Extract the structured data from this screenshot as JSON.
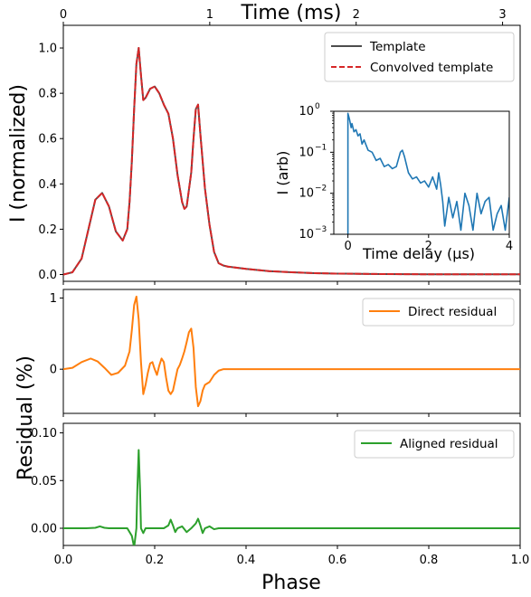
{
  "chart_data": [
    {
      "panel": "main",
      "type": "line",
      "xlabel": "",
      "ylabel": "I (normalized)",
      "xlim": [
        0,
        1
      ],
      "ylim": [
        -0.03,
        1.1
      ],
      "xticks": [
        0.0,
        0.2,
        0.4,
        0.6,
        0.8,
        1.0
      ],
      "yticks": [
        0.0,
        0.2,
        0.4,
        0.6,
        0.8,
        1.0
      ],
      "ytick_labels": [
        "0.0",
        "0.2",
        "0.4",
        "0.6",
        "0.8",
        "1.0"
      ],
      "top_axis": {
        "label": "Time (ms)",
        "lim": [
          0,
          3.12
        ],
        "ticks": [
          0,
          1,
          2,
          3
        ],
        "tick_labels": [
          "0",
          "1",
          "2",
          "3"
        ]
      },
      "legend": {
        "placement": "upper-right",
        "entries": [
          "Template",
          "Convolved template"
        ]
      },
      "series": [
        {
          "name": "Template",
          "color": "#4d4d4d",
          "style": "solid",
          "x": [
            0.0,
            0.02,
            0.04,
            0.055,
            0.07,
            0.085,
            0.1,
            0.115,
            0.13,
            0.14,
            0.145,
            0.15,
            0.155,
            0.16,
            0.165,
            0.17,
            0.175,
            0.18,
            0.19,
            0.2,
            0.21,
            0.22,
            0.23,
            0.24,
            0.25,
            0.26,
            0.265,
            0.27,
            0.28,
            0.285,
            0.29,
            0.295,
            0.3,
            0.31,
            0.32,
            0.33,
            0.34,
            0.35,
            0.36,
            0.38,
            0.4,
            0.45,
            0.5,
            0.55,
            0.6,
            0.65,
            0.7,
            0.8,
            0.9,
            1.0
          ],
          "y": [
            0.0,
            0.01,
            0.07,
            0.2,
            0.33,
            0.36,
            0.3,
            0.19,
            0.15,
            0.2,
            0.32,
            0.5,
            0.73,
            0.93,
            1.0,
            0.88,
            0.77,
            0.78,
            0.82,
            0.83,
            0.8,
            0.75,
            0.71,
            0.6,
            0.44,
            0.32,
            0.29,
            0.3,
            0.45,
            0.6,
            0.73,
            0.75,
            0.62,
            0.38,
            0.22,
            0.1,
            0.05,
            0.04,
            0.035,
            0.03,
            0.025,
            0.015,
            0.01,
            0.006,
            0.004,
            0.003,
            0.002,
            0.001,
            0.001,
            0.001
          ]
        },
        {
          "name": "Convolved template",
          "color": "#d62728",
          "style": "dashed",
          "same_as": "Template"
        }
      ],
      "inset": {
        "type": "line",
        "xlabel": "Time delay (μs)",
        "ylabel": "I (arb)",
        "xlim": [
          -0.35,
          4.0
        ],
        "ylim_log10": [
          -3,
          0
        ],
        "scale_y": "log",
        "xticks": [
          0,
          2,
          4
        ],
        "xtick_labels": [
          "0",
          "2",
          "4"
        ],
        "yticks_log10": [
          -3,
          -2,
          -1,
          0
        ],
        "color": "#1f77b4",
        "x": [
          0.0,
          0.0,
          0.04,
          0.08,
          0.1,
          0.15,
          0.2,
          0.25,
          0.3,
          0.35,
          0.4,
          0.5,
          0.6,
          0.7,
          0.8,
          0.9,
          1.0,
          1.1,
          1.2,
          1.3,
          1.35,
          1.4,
          1.5,
          1.6,
          1.7,
          1.8,
          1.9,
          2.0,
          2.1,
          2.2,
          2.25,
          2.3,
          2.35,
          2.4,
          2.5,
          2.6,
          2.7,
          2.8,
          2.9,
          3.0,
          3.1,
          3.2,
          3.3,
          3.4,
          3.5,
          3.6,
          3.7,
          3.8,
          3.9,
          4.0
        ],
        "y_log10": [
          -3.0,
          -0.05,
          -0.2,
          -0.4,
          -0.3,
          -0.5,
          -0.45,
          -0.6,
          -0.55,
          -0.8,
          -0.7,
          -0.95,
          -1.0,
          -1.2,
          -1.15,
          -1.35,
          -1.3,
          -1.4,
          -1.35,
          -1.0,
          -0.95,
          -1.1,
          -1.5,
          -1.65,
          -1.6,
          -1.75,
          -1.7,
          -1.85,
          -1.6,
          -1.9,
          -1.5,
          -1.8,
          -2.2,
          -2.8,
          -2.1,
          -2.6,
          -2.2,
          -2.9,
          -2.0,
          -2.3,
          -2.9,
          -2.0,
          -2.5,
          -2.2,
          -2.1,
          -2.9,
          -2.5,
          -2.3,
          -2.9,
          -2.1
        ]
      }
    },
    {
      "panel": "direct",
      "type": "line",
      "xlabel": "",
      "ylabel": "Residual (%)",
      "xlim": [
        0,
        1
      ],
      "ylim": [
        -0.62,
        1.12
      ],
      "xticks": [
        0.0,
        0.2,
        0.4,
        0.6,
        0.8,
        1.0
      ],
      "yticks": [
        0,
        1
      ],
      "ytick_labels": [
        "0",
        "1"
      ],
      "legend": {
        "placement": "upper-right",
        "entries": [
          "Direct residual"
        ]
      },
      "series": [
        {
          "name": "Direct residual",
          "color": "#ff7f0e",
          "style": "solid",
          "x": [
            0.0,
            0.02,
            0.04,
            0.06,
            0.075,
            0.09,
            0.105,
            0.12,
            0.135,
            0.145,
            0.15,
            0.155,
            0.16,
            0.165,
            0.17,
            0.175,
            0.18,
            0.185,
            0.19,
            0.195,
            0.2,
            0.205,
            0.21,
            0.215,
            0.22,
            0.225,
            0.23,
            0.235,
            0.24,
            0.245,
            0.25,
            0.255,
            0.26,
            0.265,
            0.27,
            0.275,
            0.28,
            0.285,
            0.29,
            0.295,
            0.3,
            0.305,
            0.31,
            0.32,
            0.33,
            0.34,
            0.35,
            0.37,
            0.4,
            0.5,
            0.7,
            1.0
          ],
          "y": [
            0.0,
            0.02,
            0.1,
            0.15,
            0.11,
            0.02,
            -0.08,
            -0.05,
            0.05,
            0.25,
            0.55,
            0.9,
            1.02,
            0.7,
            0.1,
            -0.35,
            -0.22,
            -0.05,
            0.08,
            0.1,
            0.0,
            -0.08,
            0.05,
            0.15,
            0.1,
            -0.12,
            -0.3,
            -0.35,
            -0.3,
            -0.15,
            0.0,
            0.06,
            0.15,
            0.25,
            0.38,
            0.52,
            0.57,
            0.3,
            -0.25,
            -0.52,
            -0.45,
            -0.3,
            -0.22,
            -0.18,
            -0.08,
            -0.02,
            0.0,
            0.0,
            0.0,
            0.0,
            0.0,
            0.0
          ]
        }
      ]
    },
    {
      "panel": "aligned",
      "type": "line",
      "xlabel": "Phase",
      "ylabel": "",
      "xlim": [
        0,
        1
      ],
      "ylim": [
        -0.018,
        0.11
      ],
      "xticks": [
        0.0,
        0.2,
        0.4,
        0.6,
        0.8,
        1.0
      ],
      "xtick_labels": [
        "0.0",
        "0.2",
        "0.4",
        "0.6",
        "0.8",
        "1.0"
      ],
      "yticks": [
        0.0,
        0.05,
        0.1
      ],
      "ytick_labels": [
        "0.00",
        "0.05",
        "0.10"
      ],
      "legend": {
        "placement": "upper-right",
        "entries": [
          "Aligned residual"
        ]
      },
      "series": [
        {
          "name": "Aligned residual",
          "color": "#2ca02c",
          "style": "solid",
          "x": [
            0.0,
            0.05,
            0.07,
            0.08,
            0.09,
            0.1,
            0.12,
            0.14,
            0.15,
            0.155,
            0.16,
            0.162,
            0.165,
            0.168,
            0.17,
            0.175,
            0.18,
            0.19,
            0.2,
            0.21,
            0.22,
            0.23,
            0.235,
            0.24,
            0.245,
            0.25,
            0.26,
            0.27,
            0.28,
            0.29,
            0.295,
            0.3,
            0.305,
            0.31,
            0.32,
            0.33,
            0.34,
            0.35,
            0.4,
            0.5,
            0.7,
            1.0
          ],
          "y": [
            0.0,
            0.0,
            0.0005,
            0.002,
            0.0005,
            0.0,
            0.0,
            0.0,
            -0.008,
            -0.02,
            0.0,
            0.04,
            0.082,
            0.04,
            0.0,
            -0.005,
            0.0,
            0.0,
            0.0,
            0.0,
            0.0,
            0.003,
            0.009,
            0.003,
            -0.004,
            0.0,
            0.002,
            -0.004,
            0.0,
            0.005,
            0.01,
            0.003,
            -0.005,
            0.0,
            0.002,
            -0.001,
            0.0,
            0.0,
            0.0,
            0.0,
            0.0,
            0.0
          ]
        }
      ]
    }
  ]
}
